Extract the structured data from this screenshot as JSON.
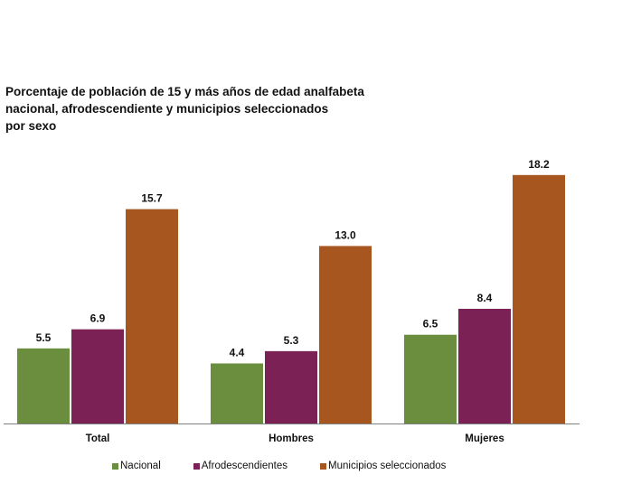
{
  "chart_data": {
    "type": "bar",
    "title_lines": [
      "Porcentaje de población de 15 y más años de edad analfabeta",
      "nacional, afrodescendiente y municipios seleccionados",
      "por sexo"
    ],
    "categories": [
      "Total",
      "Hombres",
      "Mujeres"
    ],
    "series": [
      {
        "name": "Nacional",
        "color": "#6b8e3e",
        "values": [
          5.5,
          4.4,
          6.5
        ],
        "labels": [
          "5.5",
          "4.4",
          "6.5"
        ]
      },
      {
        "name": "Afrodescendientes",
        "color": "#7b2155",
        "values": [
          6.9,
          5.3,
          8.4
        ],
        "labels": [
          "6.9",
          "5.3",
          "8.4"
        ]
      },
      {
        "name": "Municipios seleccionados",
        "color": "#a8561f",
        "values": [
          15.7,
          13.0,
          18.2
        ],
        "labels": [
          "15.7",
          "13.0",
          "18.2"
        ]
      }
    ],
    "ylim": [
      0,
      20
    ],
    "grid": false,
    "legend_position": "bottom"
  }
}
